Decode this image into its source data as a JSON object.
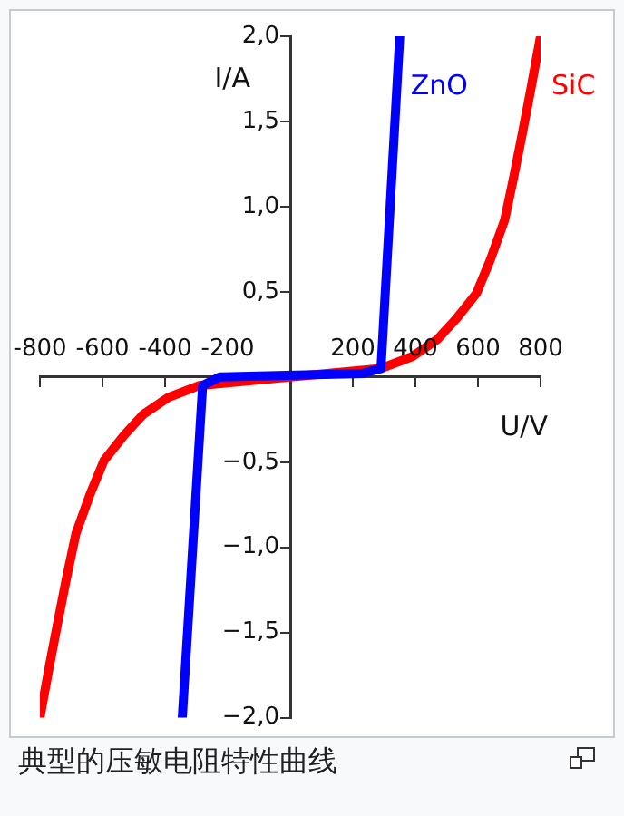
{
  "chart_data": {
    "type": "line",
    "xlabel": "U/V",
    "ylabel": "I/A",
    "xlim": [
      -800,
      800
    ],
    "ylim": [
      -2.0,
      2.0
    ],
    "xticks": [
      -800,
      -600,
      -400,
      -200,
      200,
      400,
      600,
      800
    ],
    "yticks": [
      {
        "value": -2.0,
        "label": "−2,0"
      },
      {
        "value": -1.5,
        "label": "−1,5"
      },
      {
        "value": -1.0,
        "label": "−1,0"
      },
      {
        "value": -0.5,
        "label": "−0,5"
      },
      {
        "value": 0.5,
        "label": "0,5"
      },
      {
        "value": 1.0,
        "label": "1,0"
      },
      {
        "value": 1.5,
        "label": "1,5"
      },
      {
        "value": 2.0,
        "label": "2,0"
      }
    ],
    "grid": false,
    "legend": false,
    "marker": "none",
    "series": [
      {
        "name": "ZnO",
        "color": "#0000ff",
        "x": [
          -345,
          -280,
          -225,
          230,
          290,
          350
        ],
        "values": [
          -2.0,
          -0.05,
          0,
          0.02,
          0.05,
          2.0
        ]
      },
      {
        "name": "SiC",
        "color": "#ff0000",
        "x": [
          -800,
          -770,
          -745,
          -715,
          -685,
          -640,
          -595,
          -530,
          -470,
          -390,
          -290,
          0,
          290,
          390,
          470,
          530,
          595,
          640,
          685,
          715,
          745,
          770,
          800
        ],
        "values": [
          -2.0,
          -1.7,
          -1.46,
          -1.18,
          -0.92,
          -0.69,
          -0.49,
          -0.34,
          -0.22,
          -0.12,
          -0.05,
          0,
          0.05,
          0.12,
          0.22,
          0.34,
          0.49,
          0.69,
          0.92,
          1.18,
          1.46,
          1.7,
          2.0
        ]
      }
    ],
    "annotations": [
      "典型的压敏电阻特性曲线"
    ]
  }
}
